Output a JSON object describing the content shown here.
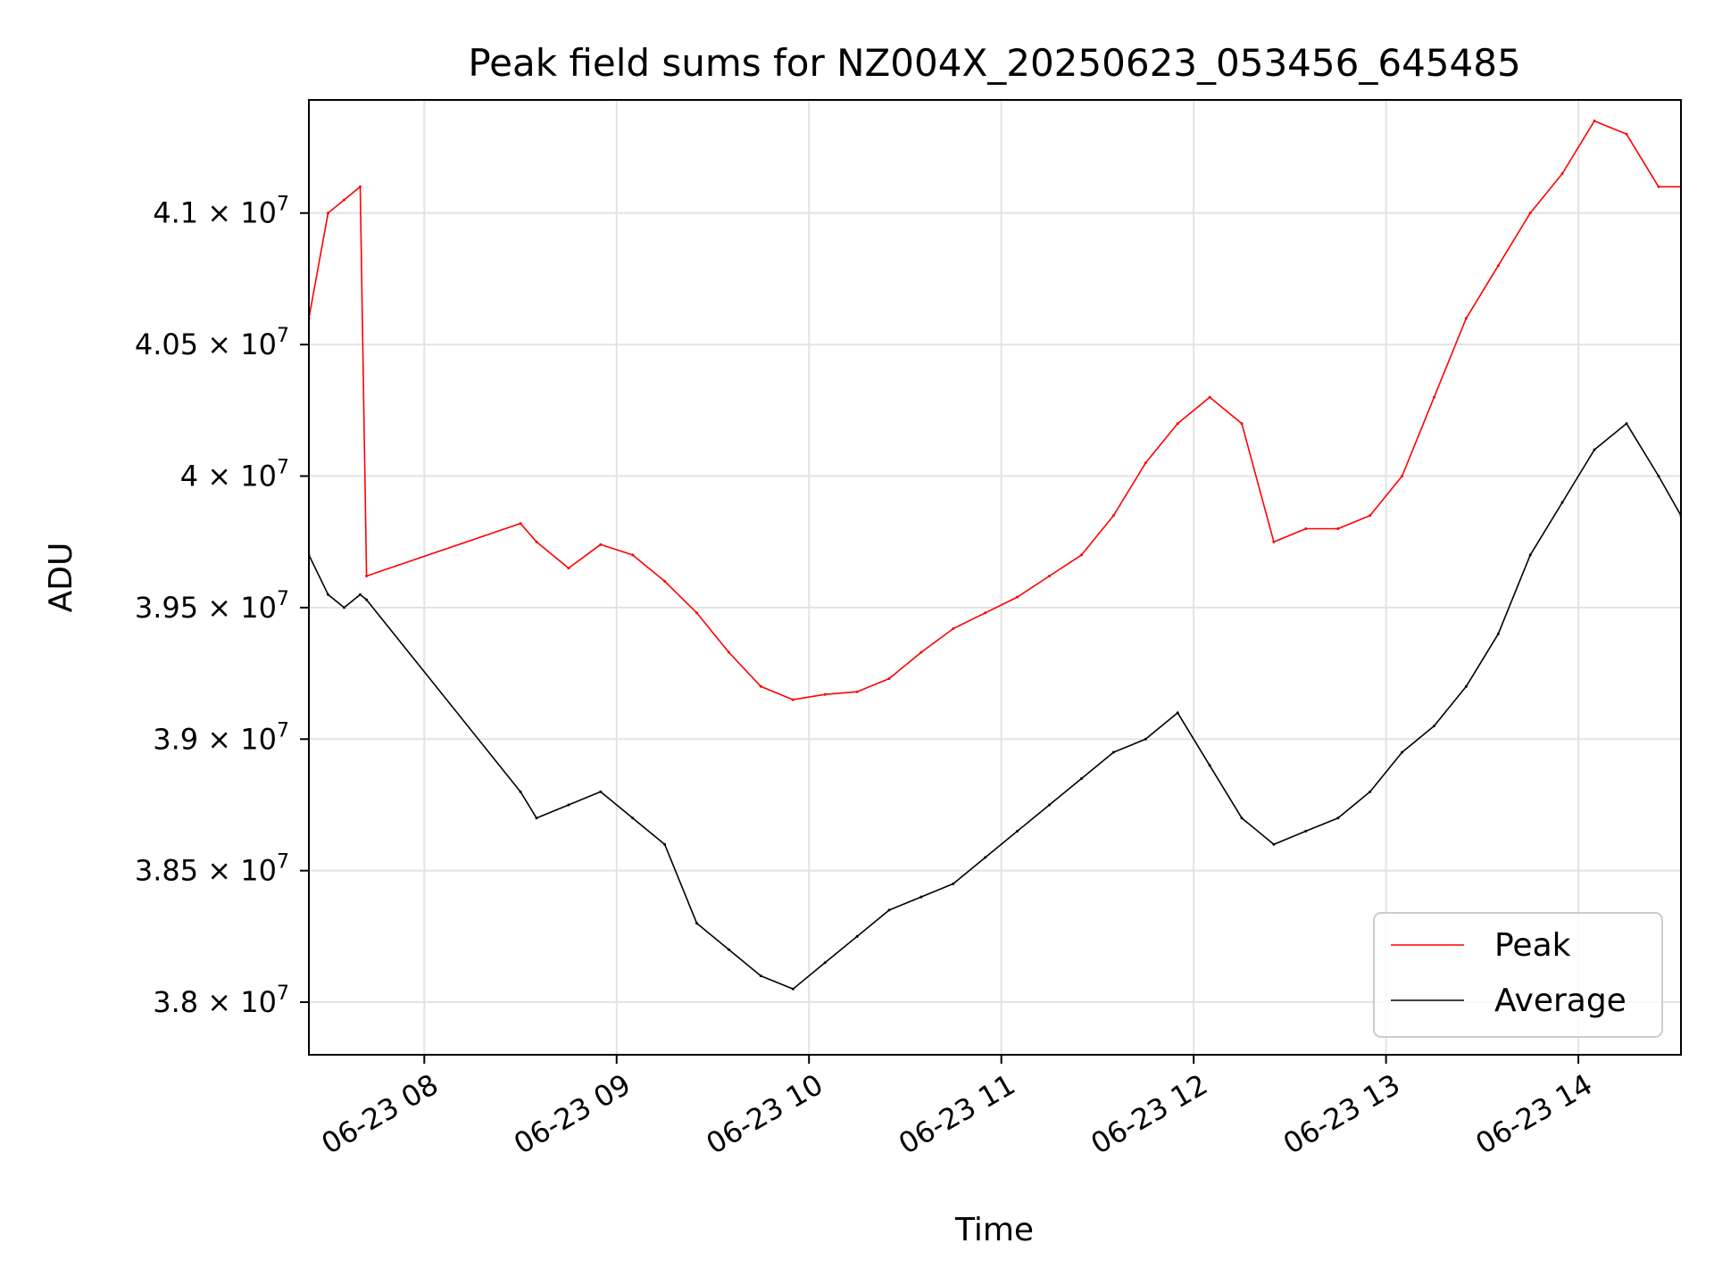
{
  "chart_data": {
    "type": "line",
    "title": "Peak field sums for NZ004X_20250623_053456_645485",
    "xlabel": "Time",
    "ylabel": "ADU",
    "grid": true,
    "legend_position": "bottom-right",
    "xlim": [
      "2025-06-23T07:24",
      "2025-06-23T14:32"
    ],
    "ylim": [
      37800000,
      41430000
    ],
    "x_ticks": [
      {
        "value": "2025-06-23T08:00",
        "label": "06-23 08"
      },
      {
        "value": "2025-06-23T09:00",
        "label": "06-23 09"
      },
      {
        "value": "2025-06-23T10:00",
        "label": "06-23 10"
      },
      {
        "value": "2025-06-23T11:00",
        "label": "06-23 11"
      },
      {
        "value": "2025-06-23T12:00",
        "label": "06-23 12"
      },
      {
        "value": "2025-06-23T13:00",
        "label": "06-23 13"
      },
      {
        "value": "2025-06-23T14:00",
        "label": "06-23 14"
      }
    ],
    "y_ticks": [
      {
        "value": 38000000,
        "mantissa": "3.8",
        "exponent": "7"
      },
      {
        "value": 38500000,
        "mantissa": "3.85",
        "exponent": "7"
      },
      {
        "value": 39000000,
        "mantissa": "3.9",
        "exponent": "7"
      },
      {
        "value": 39500000,
        "mantissa": "3.95",
        "exponent": "7"
      },
      {
        "value": 40000000,
        "mantissa": "4",
        "exponent": "7"
      },
      {
        "value": 40500000,
        "mantissa": "4.05",
        "exponent": "7"
      },
      {
        "value": 41000000,
        "mantissa": "4.1",
        "exponent": "7"
      }
    ],
    "series": [
      {
        "name": "Peak",
        "color": "#ff0000",
        "x": [
          "2025-06-23T07:24",
          "2025-06-23T07:30",
          "2025-06-23T07:35",
          "2025-06-23T07:40",
          "2025-06-23T07:42",
          "2025-06-23T08:30",
          "2025-06-23T08:35",
          "2025-06-23T08:45",
          "2025-06-23T08:55",
          "2025-06-23T09:05",
          "2025-06-23T09:15",
          "2025-06-23T09:25",
          "2025-06-23T09:35",
          "2025-06-23T09:45",
          "2025-06-23T09:55",
          "2025-06-23T10:05",
          "2025-06-23T10:15",
          "2025-06-23T10:25",
          "2025-06-23T10:35",
          "2025-06-23T10:45",
          "2025-06-23T10:55",
          "2025-06-23T11:05",
          "2025-06-23T11:15",
          "2025-06-23T11:25",
          "2025-06-23T11:35",
          "2025-06-23T11:45",
          "2025-06-23T11:55",
          "2025-06-23T12:05",
          "2025-06-23T12:15",
          "2025-06-23T12:25",
          "2025-06-23T12:35",
          "2025-06-23T12:45",
          "2025-06-23T12:55",
          "2025-06-23T13:05",
          "2025-06-23T13:15",
          "2025-06-23T13:25",
          "2025-06-23T13:35",
          "2025-06-23T13:45",
          "2025-06-23T13:55",
          "2025-06-23T14:05",
          "2025-06-23T14:15",
          "2025-06-23T14:25",
          "2025-06-23T14:32"
        ],
        "values": [
          40600000,
          41000000,
          41050000,
          41100000,
          39620000,
          39820000,
          39750000,
          39650000,
          39740000,
          39700000,
          39600000,
          39480000,
          39330000,
          39200000,
          39150000,
          39170000,
          39180000,
          39230000,
          39330000,
          39420000,
          39480000,
          39540000,
          39620000,
          39700000,
          39850000,
          40050000,
          40200000,
          40300000,
          40200000,
          39750000,
          39800000,
          39800000,
          39850000,
          40000000,
          40300000,
          40600000,
          40800000,
          41000000,
          41150000,
          41350000,
          41300000,
          41100000,
          41100000
        ]
      },
      {
        "name": "Average",
        "color": "#000000",
        "x": [
          "2025-06-23T07:24",
          "2025-06-23T07:30",
          "2025-06-23T07:35",
          "2025-06-23T07:40",
          "2025-06-23T07:42",
          "2025-06-23T08:30",
          "2025-06-23T08:35",
          "2025-06-23T08:45",
          "2025-06-23T08:55",
          "2025-06-23T09:05",
          "2025-06-23T09:15",
          "2025-06-23T09:25",
          "2025-06-23T09:35",
          "2025-06-23T09:45",
          "2025-06-23T09:55",
          "2025-06-23T10:05",
          "2025-06-23T10:15",
          "2025-06-23T10:25",
          "2025-06-23T10:35",
          "2025-06-23T10:45",
          "2025-06-23T10:55",
          "2025-06-23T11:05",
          "2025-06-23T11:15",
          "2025-06-23T11:25",
          "2025-06-23T11:35",
          "2025-06-23T11:45",
          "2025-06-23T11:55",
          "2025-06-23T12:05",
          "2025-06-23T12:15",
          "2025-06-23T12:25",
          "2025-06-23T12:35",
          "2025-06-23T12:45",
          "2025-06-23T12:55",
          "2025-06-23T13:05",
          "2025-06-23T13:15",
          "2025-06-23T13:25",
          "2025-06-23T13:35",
          "2025-06-23T13:45",
          "2025-06-23T13:55",
          "2025-06-23T14:05",
          "2025-06-23T14:15",
          "2025-06-23T14:25",
          "2025-06-23T14:32"
        ],
        "values": [
          39700000,
          39550000,
          39500000,
          39550000,
          39530000,
          38800000,
          38700000,
          38750000,
          38800000,
          38700000,
          38600000,
          38300000,
          38200000,
          38100000,
          38050000,
          38150000,
          38250000,
          38350000,
          38400000,
          38450000,
          38550000,
          38650000,
          38750000,
          38850000,
          38950000,
          39000000,
          39100000,
          38900000,
          38700000,
          38600000,
          38650000,
          38700000,
          38800000,
          38950000,
          39050000,
          39200000,
          39400000,
          39700000,
          39900000,
          40100000,
          40200000,
          40000000,
          39850000
        ]
      }
    ]
  }
}
